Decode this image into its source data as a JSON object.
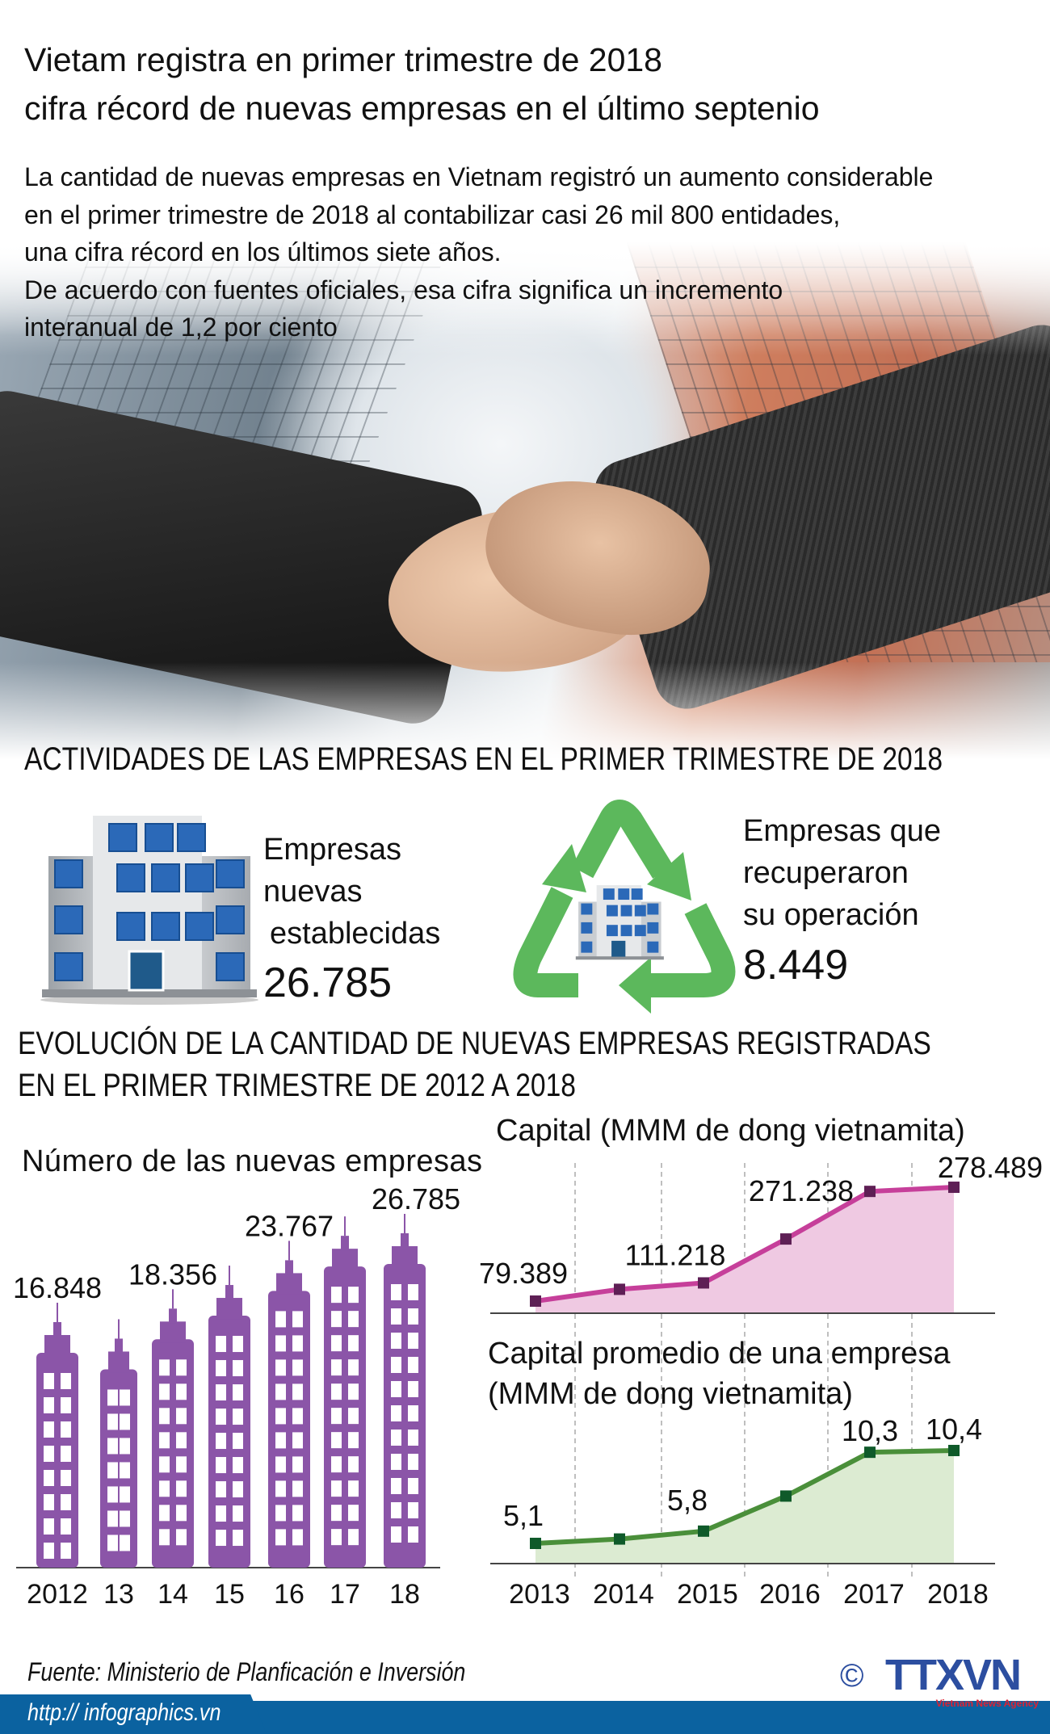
{
  "header": {
    "title_lines": [
      "Vietam registra en primer trimestre de 2018",
      "cifra récord de nuevas empresas en el último septenio"
    ],
    "intro_lines": [
      "La cantidad de nuevas empresas en Vietnam registró un aumento considerable",
      "en el primer trimestre de 2018 al contabilizar casi 26 mil 800 entidades,",
      "una cifra récord en los últimos siete años.",
      "De acuerdo con fuentes oficiales, esa cifra significa un incremento",
      "interanual de 1,2 por ciento"
    ]
  },
  "activities": {
    "heading": "ACTIVIDADES DE LAS EMPRESAS EN EL PRIMER TRIMESTRE DE 2018",
    "new": {
      "label_lines": [
        "Empresas",
        "nuevas",
        "establecidas"
      ],
      "value": "26.785",
      "icon": "office-building-icon"
    },
    "resumed": {
      "label_lines": [
        "Empresas que",
        "recuperaron",
        "su operación"
      ],
      "value": "8.449",
      "icon": "recycle-icon"
    }
  },
  "evolution": {
    "heading_lines": [
      "EVOLUCIÓN DE LA CANTIDAD DE NUEVAS EMPRESAS REGISTRADAS",
      "EN EL PRIMER TRIMESTRE DE 2012 A 2018"
    ]
  },
  "chart_data": [
    {
      "type": "bar",
      "title": "Número de las nuevas empresas",
      "categories": [
        "2012",
        "13",
        "14",
        "15",
        "16",
        "17",
        "18"
      ],
      "values": [
        16848,
        15000,
        18356,
        21000,
        23767,
        26500,
        26785
      ],
      "labels": [
        "16.848",
        null,
        "18.356",
        null,
        "23.767",
        null,
        "26.785"
      ],
      "color": "#8b55a8"
    },
    {
      "type": "area",
      "title": "Capital (MMM de dong vietnamita)",
      "categories": [
        "2013",
        "2014",
        "2015",
        "2016",
        "2017",
        "2018"
      ],
      "values": [
        79.389,
        100,
        111.218,
        188,
        271.238,
        278.489
      ],
      "labels": [
        "79.389",
        null,
        "111.218",
        null,
        "271.238",
        "278.489"
      ],
      "line_color": "#c63f9a",
      "fill_color": "#efc9e2",
      "marker_color": "#5e1f55"
    },
    {
      "type": "area",
      "title_lines": [
        "Capital promedio de una empresa",
        "(MMM de dong vietnamita)"
      ],
      "categories": [
        "2013",
        "2014",
        "2015",
        "2016",
        "2017",
        "2018"
      ],
      "values": [
        5.1,
        5.35,
        5.8,
        7.8,
        10.3,
        10.4
      ],
      "labels": [
        "5,1",
        null,
        "5,8",
        null,
        "10,3",
        "10,4"
      ],
      "line_color": "#4a8f3a",
      "fill_color": "#dcebd2",
      "marker_color": "#0f5a2a"
    }
  ],
  "footer": {
    "source": "Fuente: Ministerio de Planficación e Inversión",
    "url": "http:// infographics.vn",
    "copyright": "©",
    "logo_text": "TTXVN",
    "logo_subtitle": "Vietnam News Agency",
    "brand_color": "#0b62a0"
  }
}
